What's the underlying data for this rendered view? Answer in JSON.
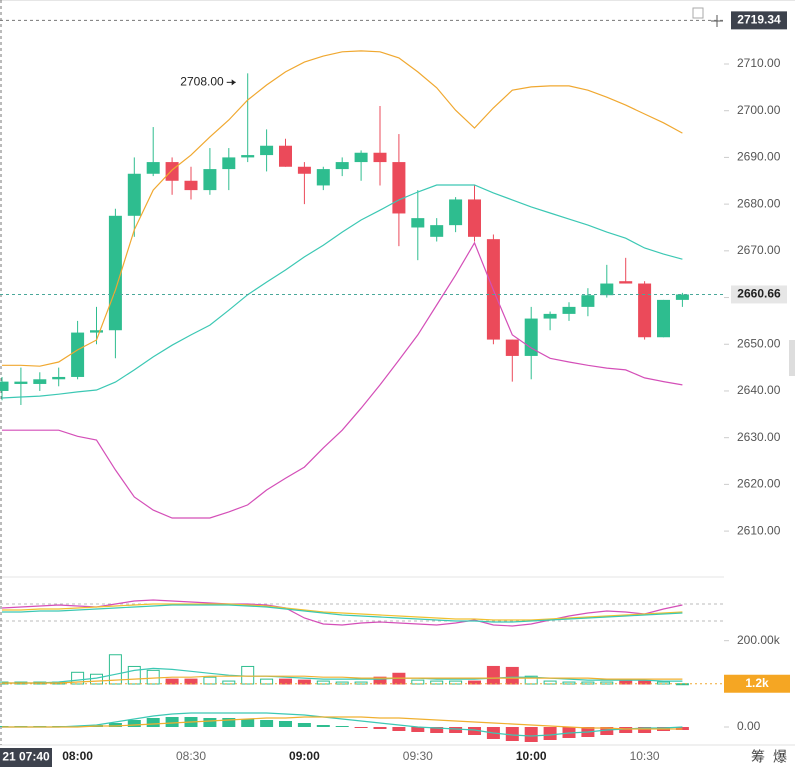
{
  "chart_data": [
    {
      "type": "candlestick",
      "categories": [
        null,
        null,
        null,
        null,
        "08:00",
        null,
        null,
        null,
        null,
        null,
        "08:30",
        null,
        null,
        null,
        null,
        null,
        "09:00",
        null,
        null,
        null,
        null,
        null,
        "09:30",
        null,
        null,
        null,
        null,
        null,
        "10:00",
        null,
        null,
        null,
        null,
        null,
        "10:30",
        null,
        null
      ],
      "open": [
        2640,
        2641.5,
        2641.5,
        2642.5,
        2643,
        2652.5,
        2653,
        2677.5,
        2686.5,
        2689,
        2685,
        2683,
        2687.5,
        2690,
        2690.5,
        2692.5,
        2688,
        2684,
        2687.5,
        2689,
        2691,
        2689,
        2675,
        2673,
        2675.5,
        2681,
        2672.5,
        2651,
        2647.5,
        2655.5,
        2656.5,
        2658,
        2660.5,
        2663.5,
        2663,
        2651.5,
        2659.5
      ],
      "high": [
        2643,
        2645,
        2644,
        2645,
        2655,
        2658,
        2679,
        2690,
        2696.5,
        2690,
        2688,
        2692,
        2692,
        2708,
        2696,
        2694,
        2689,
        2688,
        2690,
        2691.5,
        2701,
        2695,
        2683,
        2677,
        2681.5,
        2684,
        2673.5,
        2651,
        2658,
        2657,
        2659,
        2662,
        2667,
        2668.5,
        2663.5,
        2659.5,
        2661
      ],
      "low": [
        2638,
        2637,
        2640,
        2641,
        2642.5,
        2650,
        2647,
        2673,
        2686,
        2682,
        2681,
        2682,
        2683,
        2689,
        2687,
        2688,
        2680,
        2683,
        2686,
        2685,
        2684,
        2671,
        2668,
        2672,
        2674,
        2672,
        2650,
        2642,
        2642.5,
        2653,
        2655,
        2656,
        2660,
        2663,
        2651,
        2651.5,
        2658
      ],
      "close": [
        2642,
        2642,
        2642.5,
        2643,
        2652.5,
        2653,
        2677.5,
        2686.5,
        2689,
        2685,
        2683,
        2687.5,
        2690,
        2690.5,
        2692.5,
        2688,
        2686.5,
        2687.5,
        2689,
        2691,
        2689,
        2678,
        2677,
        2675.5,
        2681,
        2673,
        2651,
        2647.5,
        2655.5,
        2656.5,
        2658,
        2660.5,
        2663,
        2663,
        2651.5,
        2659.5,
        2660.66
      ],
      "up_color": "#2ebd8f",
      "down_color": "#eb4a5a",
      "series": [
        {
          "color": "#f0a830",
          "values": [
            2645.5,
            2645.5,
            2645.3,
            2646.2,
            2648.8,
            2650.9,
            2661.6,
            2674.5,
            2683,
            2687.3,
            2690.5,
            2694.4,
            2698,
            2702.3,
            2705.5,
            2708.3,
            2710.4,
            2711.7,
            2712.6,
            2712.8,
            2712.6,
            2711.3,
            2708.3,
            2704.9,
            2700.1,
            2696.3,
            2700.6,
            2704.4,
            2705.1,
            2705.3,
            2705.3,
            2704.4,
            2702.9,
            2701.2,
            2699.3,
            2697.4,
            2695.2
          ]
        },
        {
          "color": "#3cc8b4",
          "values": [
            2638.5,
            2638.7,
            2638.9,
            2639.3,
            2639.8,
            2640.2,
            2641.9,
            2644.5,
            2647.3,
            2649.8,
            2652,
            2654.1,
            2657.3,
            2660.6,
            2663.3,
            2665.9,
            2668.7,
            2671.2,
            2674,
            2676.6,
            2678.7,
            2680.9,
            2682.6,
            2684.1,
            2684.1,
            2684.1,
            2682.4,
            2680.9,
            2679.4,
            2678.1,
            2676.8,
            2675.5,
            2674,
            2672.7,
            2670.6,
            2669.3,
            2668.2
          ]
        },
        {
          "color": "#d44fb8",
          "values": [
            2631.6,
            2631.6,
            2631.6,
            2631.6,
            2630.3,
            2629.5,
            2623.1,
            2617.3,
            2614.5,
            2612.8,
            2612.8,
            2612.8,
            2614.1,
            2615.6,
            2618.8,
            2621.3,
            2623.7,
            2627.8,
            2631.6,
            2636.3,
            2641.3,
            2646.6,
            2652,
            2658.4,
            2664.8,
            2671.7,
            2661.6,
            2652,
            2649.2,
            2647,
            2646.2,
            2645.5,
            2644.9,
            2644.5,
            2642.8,
            2642,
            2641.3
          ]
        }
      ],
      "ylim": [
        2600.6,
        2723.7
      ],
      "yticks": [
        {
          "value": 2610,
          "label": "2610.00"
        },
        {
          "value": 2620,
          "label": "2620.00"
        },
        {
          "value": 2630,
          "label": "2630.00"
        },
        {
          "value": 2640,
          "label": "2640.00"
        },
        {
          "value": 2650,
          "label": "2650.00"
        },
        {
          "value": 2660,
          "label": "2660.00"
        },
        {
          "value": 2670,
          "label": "2670.00"
        },
        {
          "value": 2680,
          "label": "2680.00"
        },
        {
          "value": 2690,
          "label": "2690.00"
        },
        {
          "value": 2700,
          "label": "2700.00"
        },
        {
          "value": 2710,
          "label": "2710.00"
        }
      ],
      "max_label": {
        "index": 13,
        "value": 2708,
        "label": "2708.00"
      },
      "crosshair_price": 2719.34,
      "crosshair_time": "21 07:40",
      "last_price": 2660.66,
      "toolbar": [
        "筹",
        "爆"
      ]
    },
    {
      "type": "line",
      "series": [
        {
          "color": "#d44fb8",
          "values": [
            22,
            23,
            24,
            25,
            24,
            23,
            26,
            29,
            30,
            29,
            28,
            27,
            26,
            26,
            25,
            22,
            12,
            6,
            5,
            7,
            8,
            7,
            6,
            5,
            7,
            10,
            5,
            4,
            6,
            10,
            14,
            17,
            19,
            18,
            16,
            21,
            25
          ]
        },
        {
          "color": "#f0c030",
          "values": [
            20,
            20,
            21,
            21,
            22,
            23,
            24,
            25,
            26,
            26,
            26,
            26,
            26,
            25,
            24,
            22,
            20,
            18,
            17,
            16,
            15,
            14,
            13,
            12,
            11,
            11,
            10,
            10,
            10,
            11,
            12,
            13,
            14,
            15,
            16,
            17,
            18
          ]
        },
        {
          "color": "#3cc8b4",
          "values": [
            18,
            18,
            19,
            19,
            20,
            21,
            22,
            23,
            24,
            25,
            25,
            25,
            25,
            24,
            23,
            21,
            19,
            17,
            15,
            14,
            13,
            12,
            11,
            10,
            9,
            9,
            8,
            8,
            9,
            10,
            11,
            12,
            13,
            14,
            15,
            16,
            17
          ]
        }
      ],
      "ylim": [
        0,
        30
      ]
    },
    {
      "type": "bar",
      "values": [
        9000,
        9000,
        9000,
        9000,
        54000,
        45000,
        135000,
        81000,
        63000,
        22500,
        22500,
        31500,
        13500,
        81000,
        22500,
        22500,
        18000,
        13500,
        9000,
        9000,
        31500,
        49500,
        18000,
        13500,
        13500,
        13500,
        81000,
        76500,
        36000,
        13500,
        9000,
        9000,
        9000,
        13500,
        13500,
        9000,
        1200
      ],
      "series": [
        {
          "color": "#3cc8b4",
          "values": [
            4500,
            4500,
            4500,
            9000,
            18000,
            27000,
            45000,
            63000,
            72000,
            67500,
            58500,
            49500,
            40500,
            36000,
            36000,
            31500,
            27000,
            22500,
            22500,
            22500,
            22500,
            27000,
            27000,
            22500,
            22500,
            22500,
            27000,
            31500,
            31500,
            27000,
            22500,
            18000,
            18000,
            18000,
            18000,
            13500,
            13500
          ]
        },
        {
          "color": "#f0b030",
          "values": [
            4500,
            4500,
            4500,
            4500,
            9000,
            13500,
            18000,
            22500,
            27000,
            31500,
            31500,
            36000,
            36000,
            36000,
            36000,
            36000,
            36000,
            31500,
            31500,
            27000,
            27000,
            27000,
            27000,
            27000,
            27000,
            27000,
            27000,
            27000,
            27000,
            27000,
            27000,
            27000,
            22500,
            22500,
            22500,
            22500,
            22500
          ]
        }
      ],
      "ylim": [
        0,
        240000
      ],
      "yticks": [
        {
          "value": 200000,
          "label": "200.00k"
        }
      ],
      "last_label": {
        "value": 1200,
        "label": "1.2k"
      }
    },
    {
      "type": "macd",
      "values": [
        0.5,
        0.5,
        0.5,
        0.5,
        0.5,
        1,
        2,
        3.5,
        4.5,
        5,
        5,
        4.5,
        4.5,
        4,
        3.5,
        3,
        2,
        1,
        0.5,
        -0.5,
        -1,
        -2,
        -2.5,
        -3,
        -3,
        -4,
        -6,
        -7,
        -7.5,
        -6.5,
        -5.5,
        -5,
        -4,
        -3,
        -3,
        -2,
        -1.5
      ],
      "series": [
        {
          "color": "#3cc8b4",
          "values": [
            0,
            0,
            0,
            0,
            0.5,
            1,
            2.5,
            4,
            5.5,
            6.5,
            7,
            7,
            7,
            7,
            7,
            6.5,
            6,
            5,
            4,
            3,
            2,
            1,
            0,
            -0.5,
            -1,
            -1.5,
            -3,
            -4,
            -4.5,
            -4,
            -3,
            -2.5,
            -1.5,
            -1,
            -0.5,
            -0.5,
            0
          ]
        },
        {
          "color": "#f0b030",
          "values": [
            0,
            0,
            0,
            0,
            0,
            0.5,
            0.5,
            1,
            1.5,
            2,
            2.5,
            3,
            3.5,
            4,
            4.5,
            4.5,
            5,
            5,
            5,
            5,
            4.5,
            4.5,
            4,
            3.5,
            3,
            2.5,
            2,
            1.5,
            1,
            0.5,
            0,
            -0.5,
            -0.5,
            -1,
            -1,
            -1,
            -1
          ]
        }
      ],
      "ylim": [
        -8,
        8
      ],
      "yticks": [
        {
          "value": 0,
          "label": "0.00"
        }
      ]
    }
  ]
}
